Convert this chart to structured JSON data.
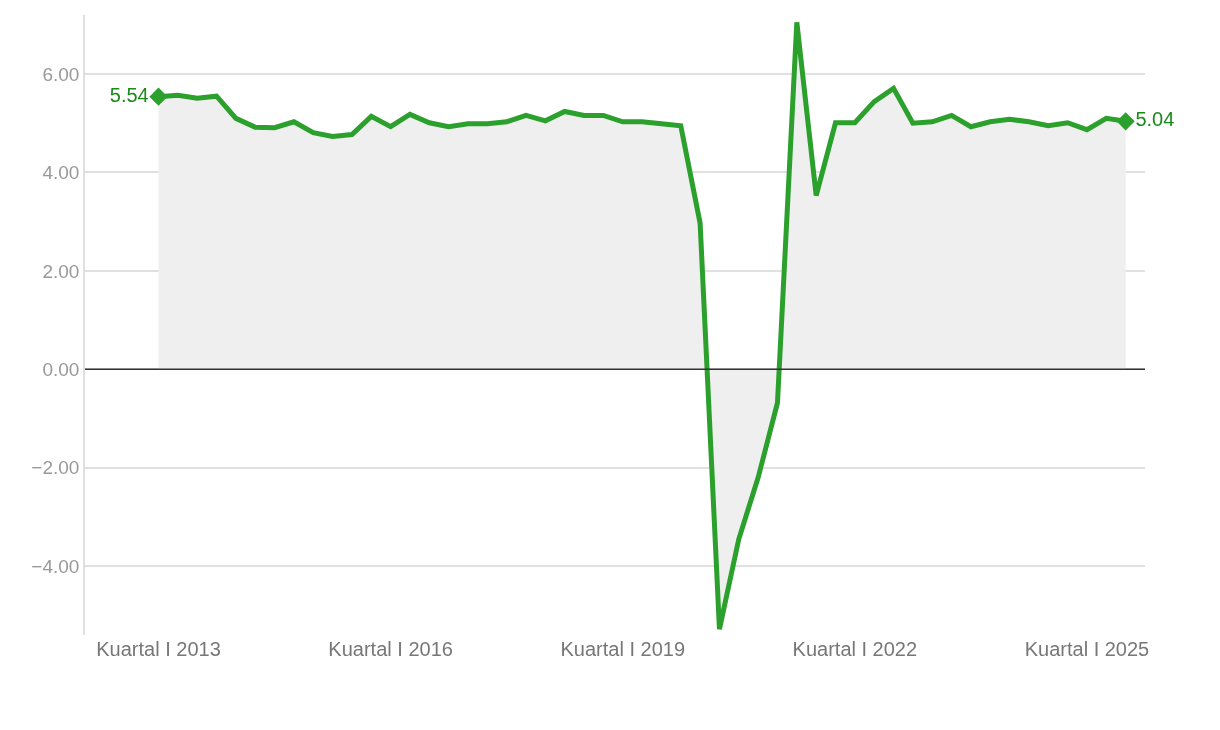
{
  "chart_data": {
    "type": "area",
    "categories": [
      "Kuartal I 2013",
      null,
      null,
      null,
      null,
      null,
      null,
      null,
      null,
      null,
      null,
      null,
      "Kuartal I 2016",
      null,
      null,
      null,
      null,
      null,
      null,
      null,
      null,
      null,
      null,
      null,
      "Kuartal I 2019",
      null,
      null,
      null,
      null,
      null,
      null,
      null,
      null,
      null,
      null,
      null,
      "Kuartal I 2022",
      null,
      null,
      null,
      null,
      null,
      null,
      null,
      null,
      null,
      null,
      null,
      "Kuartal I 2025",
      null,
      null
    ],
    "series": [
      {
        "color": "#2ca02c",
        "values": [
          5.54,
          5.57,
          5.51,
          5.55,
          5.1,
          4.92,
          4.91,
          5.03,
          4.81,
          4.73,
          4.77,
          5.14,
          4.93,
          5.18,
          5.01,
          4.93,
          4.99,
          4.99,
          5.03,
          5.16,
          5.05,
          5.24,
          5.16,
          5.16,
          5.03,
          5.03,
          4.99,
          4.95,
          2.97,
          -5.28,
          -3.45,
          -2.2,
          -0.68,
          7.05,
          3.53,
          5.01,
          5.01,
          5.44,
          5.71,
          5.0,
          5.03,
          5.16,
          4.93,
          5.03,
          5.08,
          5.03,
          4.95,
          5.01,
          4.87,
          5.1,
          5.04
        ],
        "value_labels": [
          "5.54",
          null,
          null,
          null,
          null,
          null,
          null,
          null,
          null,
          null,
          null,
          null,
          null,
          null,
          null,
          null,
          null,
          null,
          null,
          null,
          null,
          null,
          null,
          null,
          null,
          null,
          null,
          null,
          null,
          null,
          null,
          null,
          null,
          null,
          null,
          null,
          null,
          null,
          null,
          null,
          null,
          null,
          null,
          null,
          null,
          null,
          null,
          null,
          null,
          null,
          "5.04"
        ]
      }
    ],
    "yticks": [
      {
        "value": -4,
        "label": "−4.00"
      },
      {
        "value": -2,
        "label": "−2.00"
      },
      {
        "value": 0,
        "label": "0.00"
      },
      {
        "value": 2,
        "label": "2.00"
      },
      {
        "value": 4,
        "label": "4.00"
      },
      {
        "value": 6,
        "label": "6.00"
      }
    ],
    "ylim": [
      -5.4,
      7.2
    ],
    "ref_lines": [
      {
        "axis": "y",
        "value": 0,
        "color": "#333333"
      }
    ],
    "grid": "y"
  }
}
